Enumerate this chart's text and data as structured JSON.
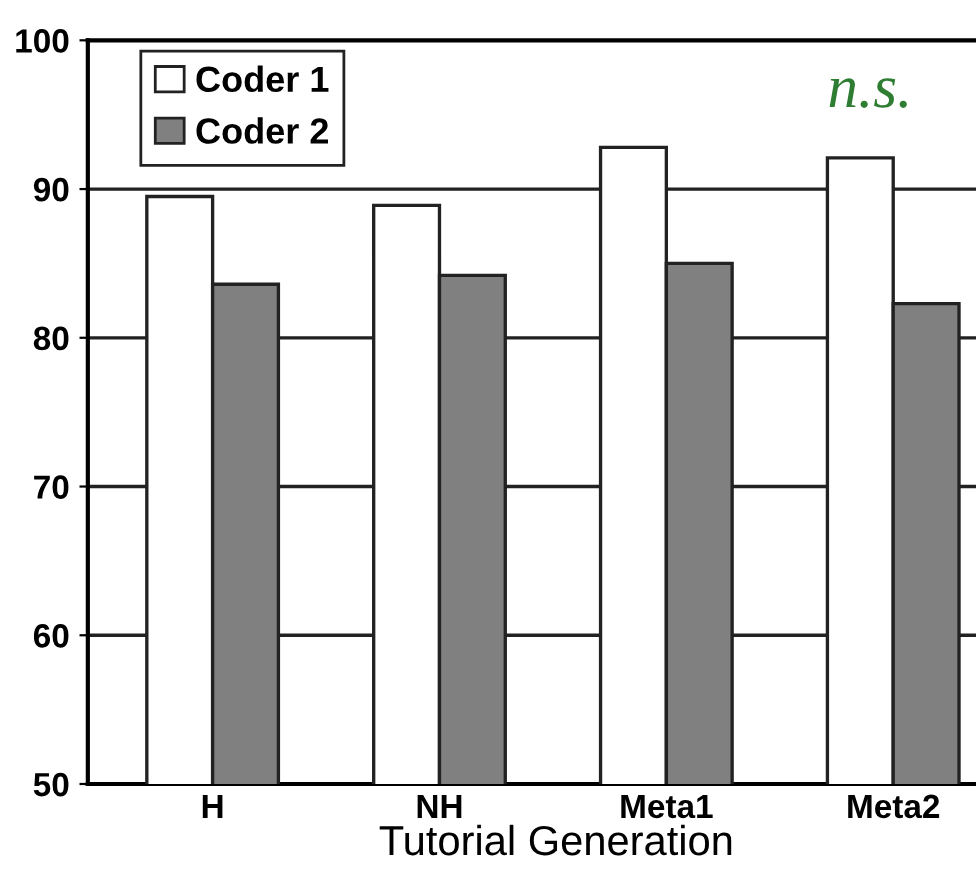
{
  "chart_data": {
    "type": "bar",
    "xlabel": "Tutorial Generation",
    "categories": [
      "H",
      "NH",
      "Meta1",
      "Meta2"
    ],
    "series": [
      {
        "name": "Coder 1",
        "color": "#ffffff",
        "values": [
          89.5,
          88.9,
          92.8,
          92.1
        ]
      },
      {
        "name": "Coder 2",
        "color": "#808080",
        "values": [
          83.6,
          84.2,
          85.0,
          82.3
        ]
      }
    ],
    "ylim": [
      50,
      100
    ],
    "yticks": [
      50,
      60,
      70,
      80,
      90,
      100
    ],
    "grid": "y",
    "legend": "top left",
    "annotations": [
      "n.s."
    ]
  }
}
